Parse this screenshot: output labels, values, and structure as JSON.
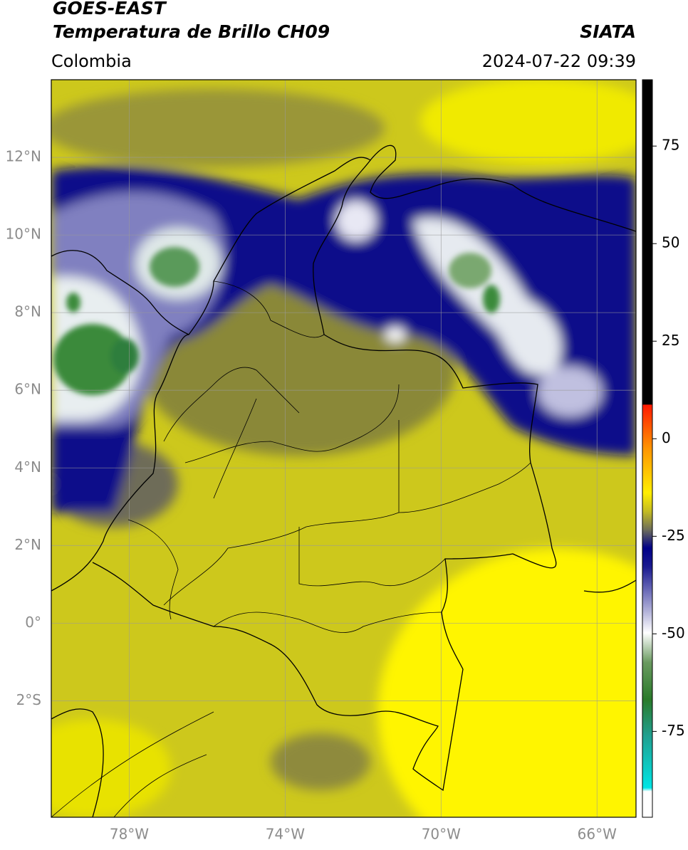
{
  "header": {
    "title": "GOES-EAST",
    "subtitle": "Temperatura de Brillo CH09",
    "region": "Colombia",
    "source": "SIATA",
    "datetime": "2024-07-22 09:39"
  },
  "map": {
    "xlim": [
      -80,
      -65
    ],
    "ylim": [
      -5,
      14
    ],
    "xticks": [
      {
        "value": -78,
        "label": "78°W"
      },
      {
        "value": -74,
        "label": "74°W"
      },
      {
        "value": -70,
        "label": "70°W"
      },
      {
        "value": -66,
        "label": "66°W"
      }
    ],
    "yticks": [
      {
        "value": 12,
        "label": "12°N"
      },
      {
        "value": 10,
        "label": "10°N"
      },
      {
        "value": 8,
        "label": "8°N"
      },
      {
        "value": 6,
        "label": "6°N"
      },
      {
        "value": 4,
        "label": "4°N"
      },
      {
        "value": 2,
        "label": "2°N"
      },
      {
        "value": 0,
        "label": "0°"
      },
      {
        "value": -2,
        "label": "2°S"
      }
    ]
  },
  "colorbar": {
    "lim": [
      -97,
      92
    ],
    "ticks": [
      75,
      50,
      25,
      0,
      -25,
      -50,
      -75
    ]
  }
}
